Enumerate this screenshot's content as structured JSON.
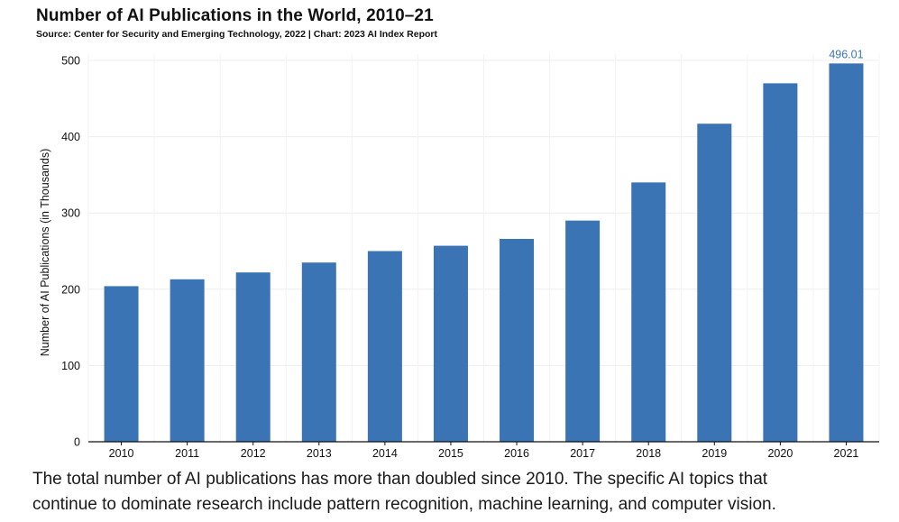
{
  "chart_data": {
    "type": "bar",
    "title": "Number of AI Publications in the World, 2010–21",
    "subtitle": "Source: Center for Security and Emerging Technology, 2022 | Chart: 2023 AI Index Report",
    "xlabel": "",
    "ylabel": "Number of AI Publications (in Thousands)",
    "categories": [
      "2010",
      "2011",
      "2012",
      "2013",
      "2014",
      "2015",
      "2016",
      "2017",
      "2018",
      "2019",
      "2020",
      "2021"
    ],
    "values": [
      204,
      213,
      222,
      235,
      250,
      257,
      266,
      290,
      340,
      417,
      470,
      496.01
    ],
    "data_labels": [
      {
        "index": 11,
        "text": "496.01"
      }
    ],
    "ylim": [
      0,
      500
    ],
    "yticks": [
      0,
      100,
      200,
      300,
      400,
      500
    ],
    "bar_color": "#3a74b4",
    "label_color": "#3a74b4",
    "grid": true,
    "legend": "none"
  },
  "caption": {
    "line1": "The total number of AI publications has more than doubled since 2010. The specific AI topics that",
    "line2": "continue to dominate research include pattern recognition, machine learning, and computer vision."
  }
}
